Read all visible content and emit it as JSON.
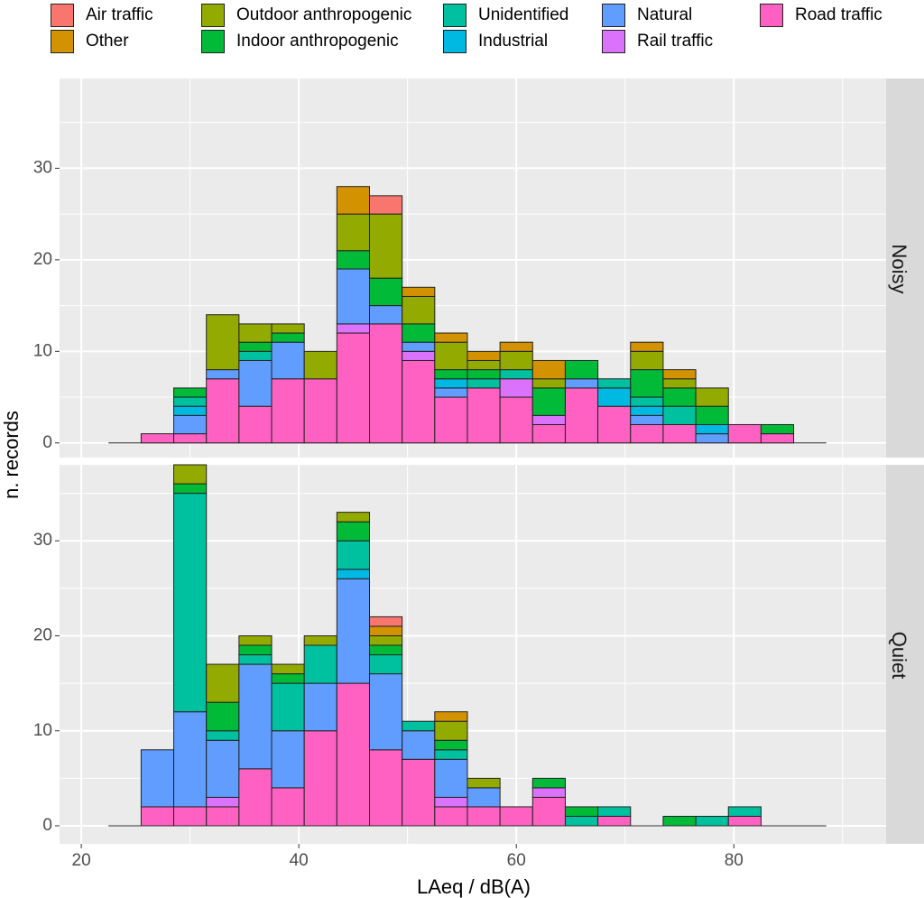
{
  "chart_data": {
    "type": "bar",
    "stacked": true,
    "xlabel": "LAeq / dB(A)",
    "ylabel": "n. records",
    "xlim": [
      18,
      94
    ],
    "x_ticks": [
      20,
      40,
      60,
      80
    ],
    "bin_width": 3,
    "bin_starts": [
      25.5,
      28.5,
      31.5,
      34.5,
      37.5,
      40.5,
      43.5,
      46.5,
      49.5,
      52.5,
      55.5,
      58.5,
      61.5,
      64.5,
      67.5,
      70.5,
      73.5,
      76.5,
      79.5,
      82.5
    ],
    "baseline_range": [
      22.5,
      88.5
    ],
    "legend_position": "top",
    "categories": [
      "Road traffic",
      "Rail traffic",
      "Natural",
      "Industrial",
      "Unidentified",
      "Indoor anthropogenic",
      "Outdoor anthropogenic",
      "Other",
      "Air traffic"
    ],
    "colors": {
      "Air traffic": "#F8766D",
      "Other": "#D39200",
      "Outdoor anthropogenic": "#93AA00",
      "Indoor anthropogenic": "#00BA38",
      "Unidentified": "#00C19F",
      "Industrial": "#00B9E3",
      "Natural": "#619CFF",
      "Rail traffic": "#DB72FB",
      "Road traffic": "#FF61C3"
    },
    "panels": [
      {
        "name": "Noisy",
        "ylim": [
          -1.6,
          39.8
        ],
        "y_ticks": [
          0,
          10,
          20,
          30
        ],
        "bins": [
          {
            "Road traffic": 1
          },
          {
            "Road traffic": 1,
            "Natural": 2,
            "Industrial": 1,
            "Unidentified": 1,
            "Indoor anthropogenic": 1
          },
          {
            "Road traffic": 7,
            "Natural": 1,
            "Outdoor anthropogenic": 6
          },
          {
            "Road traffic": 4,
            "Natural": 5,
            "Unidentified": 1,
            "Indoor anthropogenic": 1,
            "Outdoor anthropogenic": 2
          },
          {
            "Road traffic": 7,
            "Natural": 4,
            "Indoor anthropogenic": 1,
            "Outdoor anthropogenic": 1
          },
          {
            "Road traffic": 7,
            "Outdoor anthropogenic": 3
          },
          {
            "Road traffic": 12,
            "Rail traffic": 1,
            "Natural": 6,
            "Indoor anthropogenic": 2,
            "Outdoor anthropogenic": 4,
            "Other": 3
          },
          {
            "Road traffic": 13,
            "Natural": 2,
            "Indoor anthropogenic": 3,
            "Outdoor anthropogenic": 7,
            "Air traffic": 2
          },
          {
            "Road traffic": 9,
            "Rail traffic": 1,
            "Natural": 1,
            "Indoor anthropogenic": 2,
            "Outdoor anthropogenic": 3,
            "Other": 1
          },
          {
            "Road traffic": 5,
            "Natural": 1,
            "Industrial": 1,
            "Indoor anthropogenic": 1,
            "Outdoor anthropogenic": 3,
            "Other": 1
          },
          {
            "Road traffic": 6,
            "Unidentified": 1,
            "Indoor anthropogenic": 1,
            "Outdoor anthropogenic": 1,
            "Other": 1
          },
          {
            "Road traffic": 5,
            "Rail traffic": 2,
            "Unidentified": 1,
            "Outdoor anthropogenic": 2,
            "Other": 1
          },
          {
            "Road traffic": 2,
            "Rail traffic": 1,
            "Indoor anthropogenic": 3,
            "Outdoor anthropogenic": 1,
            "Other": 2
          },
          {
            "Road traffic": 6,
            "Natural": 1,
            "Indoor anthropogenic": 2
          },
          {
            "Road traffic": 4,
            "Industrial": 2,
            "Unidentified": 1
          },
          {
            "Road traffic": 2,
            "Natural": 1,
            "Industrial": 1,
            "Unidentified": 1,
            "Indoor anthropogenic": 3,
            "Outdoor anthropogenic": 2,
            "Other": 1
          },
          {
            "Road traffic": 2,
            "Unidentified": 2,
            "Indoor anthropogenic": 2,
            "Outdoor anthropogenic": 1,
            "Other": 1
          },
          {
            "Natural": 1,
            "Industrial": 1,
            "Indoor anthropogenic": 2,
            "Outdoor anthropogenic": 2
          },
          {
            "Road traffic": 2
          },
          {
            "Road traffic": 1,
            "Indoor anthropogenic": 1
          }
        ]
      },
      {
        "name": "Quiet",
        "ylim": [
          -1.9,
          38.0
        ],
        "y_ticks": [
          0,
          10,
          20,
          30
        ],
        "bins": [
          {
            "Road traffic": 2,
            "Natural": 6
          },
          {
            "Road traffic": 2,
            "Natural": 10,
            "Unidentified": 23,
            "Indoor anthropogenic": 1,
            "Outdoor anthropogenic": 2
          },
          {
            "Road traffic": 2,
            "Rail traffic": 1,
            "Natural": 6,
            "Unidentified": 1,
            "Indoor anthropogenic": 3,
            "Outdoor anthropogenic": 4
          },
          {
            "Road traffic": 6,
            "Natural": 11,
            "Unidentified": 1,
            "Indoor anthropogenic": 1,
            "Outdoor anthropogenic": 1
          },
          {
            "Road traffic": 4,
            "Natural": 6,
            "Unidentified": 5,
            "Indoor anthropogenic": 1,
            "Outdoor anthropogenic": 1
          },
          {
            "Road traffic": 10,
            "Natural": 5,
            "Unidentified": 4,
            "Outdoor anthropogenic": 1
          },
          {
            "Road traffic": 15,
            "Natural": 11,
            "Industrial": 1,
            "Unidentified": 3,
            "Indoor anthropogenic": 2,
            "Outdoor anthropogenic": 1
          },
          {
            "Road traffic": 8,
            "Natural": 8,
            "Unidentified": 2,
            "Indoor anthropogenic": 1,
            "Outdoor anthropogenic": 1,
            "Other": 1,
            "Air traffic": 1
          },
          {
            "Road traffic": 7,
            "Natural": 3,
            "Unidentified": 1
          },
          {
            "Road traffic": 2,
            "Rail traffic": 1,
            "Natural": 4,
            "Unidentified": 1,
            "Indoor anthropogenic": 1,
            "Outdoor anthropogenic": 2,
            "Other": 1
          },
          {
            "Road traffic": 2,
            "Natural": 2,
            "Outdoor anthropogenic": 1
          },
          {
            "Road traffic": 2
          },
          {
            "Road traffic": 3,
            "Rail traffic": 1,
            "Indoor anthropogenic": 1
          },
          {
            "Unidentified": 1,
            "Indoor anthropogenic": 1
          },
          {
            "Road traffic": 1,
            "Unidentified": 1
          },
          {},
          {
            "Indoor anthropogenic": 1
          },
          {
            "Unidentified": 1
          },
          {
            "Road traffic": 1,
            "Unidentified": 1
          },
          {}
        ]
      }
    ]
  },
  "legend": [
    {
      "label": "Air traffic",
      "color": "#F8766D"
    },
    {
      "label": "Other",
      "color": "#D39200"
    },
    {
      "label": "Outdoor anthropogenic",
      "color": "#93AA00"
    },
    {
      "label": "Indoor anthropogenic",
      "color": "#00BA38"
    },
    {
      "label": "Unidentified",
      "color": "#00C19F"
    },
    {
      "label": "Industrial",
      "color": "#00B9E3"
    },
    {
      "label": "Natural",
      "color": "#619CFF"
    },
    {
      "label": "Rail traffic",
      "color": "#DB72FB"
    },
    {
      "label": "Road traffic",
      "color": "#FF61C3"
    }
  ]
}
